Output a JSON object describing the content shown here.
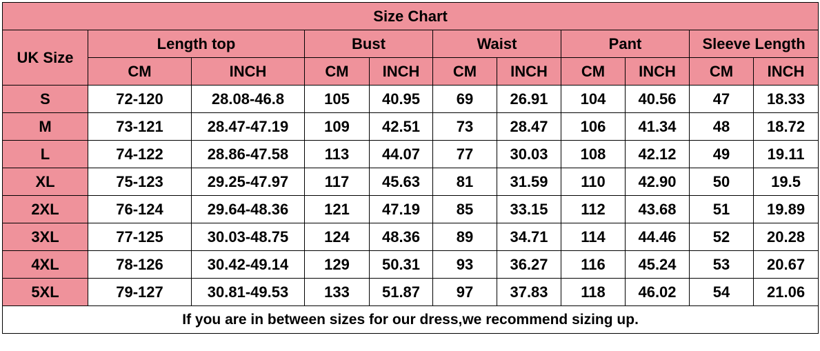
{
  "title": "Size Chart",
  "size_header": "UK Size",
  "groups": [
    "Length top",
    "Bust",
    "Waist",
    "Pant",
    "Sleeve Length"
  ],
  "units": [
    "CM",
    "INCH"
  ],
  "rows": [
    {
      "size": "S",
      "values": [
        "72-120",
        "28.08-46.8",
        "105",
        "40.95",
        "69",
        "26.91",
        "104",
        "40.56",
        "47",
        "18.33"
      ]
    },
    {
      "size": "M",
      "values": [
        "73-121",
        "28.47-47.19",
        "109",
        "42.51",
        "73",
        "28.47",
        "106",
        "41.34",
        "48",
        "18.72"
      ]
    },
    {
      "size": "L",
      "values": [
        "74-122",
        "28.86-47.58",
        "113",
        "44.07",
        "77",
        "30.03",
        "108",
        "42.12",
        "49",
        "19.11"
      ]
    },
    {
      "size": "XL",
      "values": [
        "75-123",
        "29.25-47.97",
        "117",
        "45.63",
        "81",
        "31.59",
        "110",
        "42.90",
        "50",
        "19.5"
      ]
    },
    {
      "size": "2XL",
      "values": [
        "76-124",
        "29.64-48.36",
        "121",
        "47.19",
        "85",
        "33.15",
        "112",
        "43.68",
        "51",
        "19.89"
      ]
    },
    {
      "size": "3XL",
      "values": [
        "77-125",
        "30.03-48.75",
        "124",
        "48.36",
        "89",
        "34.71",
        "114",
        "44.46",
        "52",
        "20.28"
      ]
    },
    {
      "size": "4XL",
      "values": [
        "78-126",
        "30.42-49.14",
        "129",
        "50.31",
        "93",
        "36.27",
        "116",
        "45.24",
        "53",
        "20.67"
      ]
    },
    {
      "size": "5XL",
      "values": [
        "79-127",
        "30.81-49.53",
        "133",
        "51.87",
        "97",
        "37.83",
        "118",
        "46.02",
        "54",
        "21.06"
      ]
    }
  ],
  "footer": "If you are in between sizes for our dress,we recommend sizing up.",
  "colors": {
    "header_fill": "#EF929B",
    "cell_fill": "#FFFFFF",
    "border": "#000000"
  }
}
